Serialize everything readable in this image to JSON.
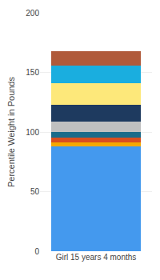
{
  "chart_data": {
    "type": "bar",
    "stacked": true,
    "categories": [
      "Girl 15 years 4 months"
    ],
    "ylabel": "Percentile Weight in Pounds",
    "series": [
      {
        "color": "#4499ee",
        "values": [
          88
        ]
      },
      {
        "color": "#f5a800",
        "values": [
          3
        ]
      },
      {
        "color": "#d94e1f",
        "values": [
          4
        ]
      },
      {
        "color": "#1a6b8a",
        "values": [
          5
        ]
      },
      {
        "color": "#c0c0c0",
        "values": [
          9
        ]
      },
      {
        "color": "#1e3a5f",
        "values": [
          14
        ]
      },
      {
        "color": "#fde87a",
        "values": [
          18
        ]
      },
      {
        "color": "#1aaedf",
        "values": [
          15
        ]
      },
      {
        "color": "#b05a3a",
        "values": [
          12
        ]
      }
    ],
    "ylim": [
      0,
      200
    ],
    "yticks": [
      0,
      50,
      100,
      150,
      200
    ],
    "grid": true
  }
}
